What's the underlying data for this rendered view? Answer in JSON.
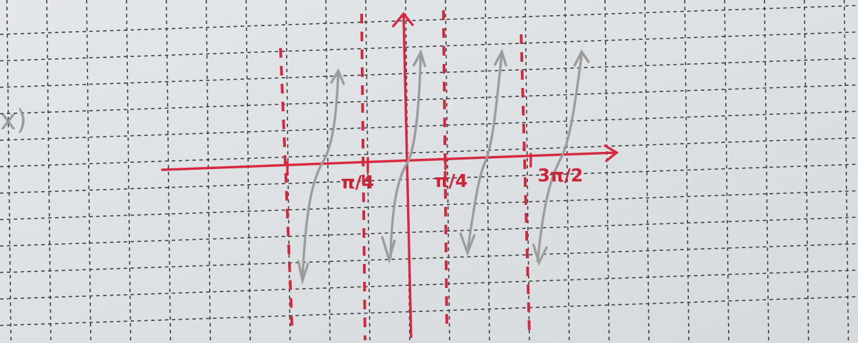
{
  "left_fragment": "x)",
  "tick_labels": [
    "π/4",
    "π/4",
    "3π/2"
  ]
}
